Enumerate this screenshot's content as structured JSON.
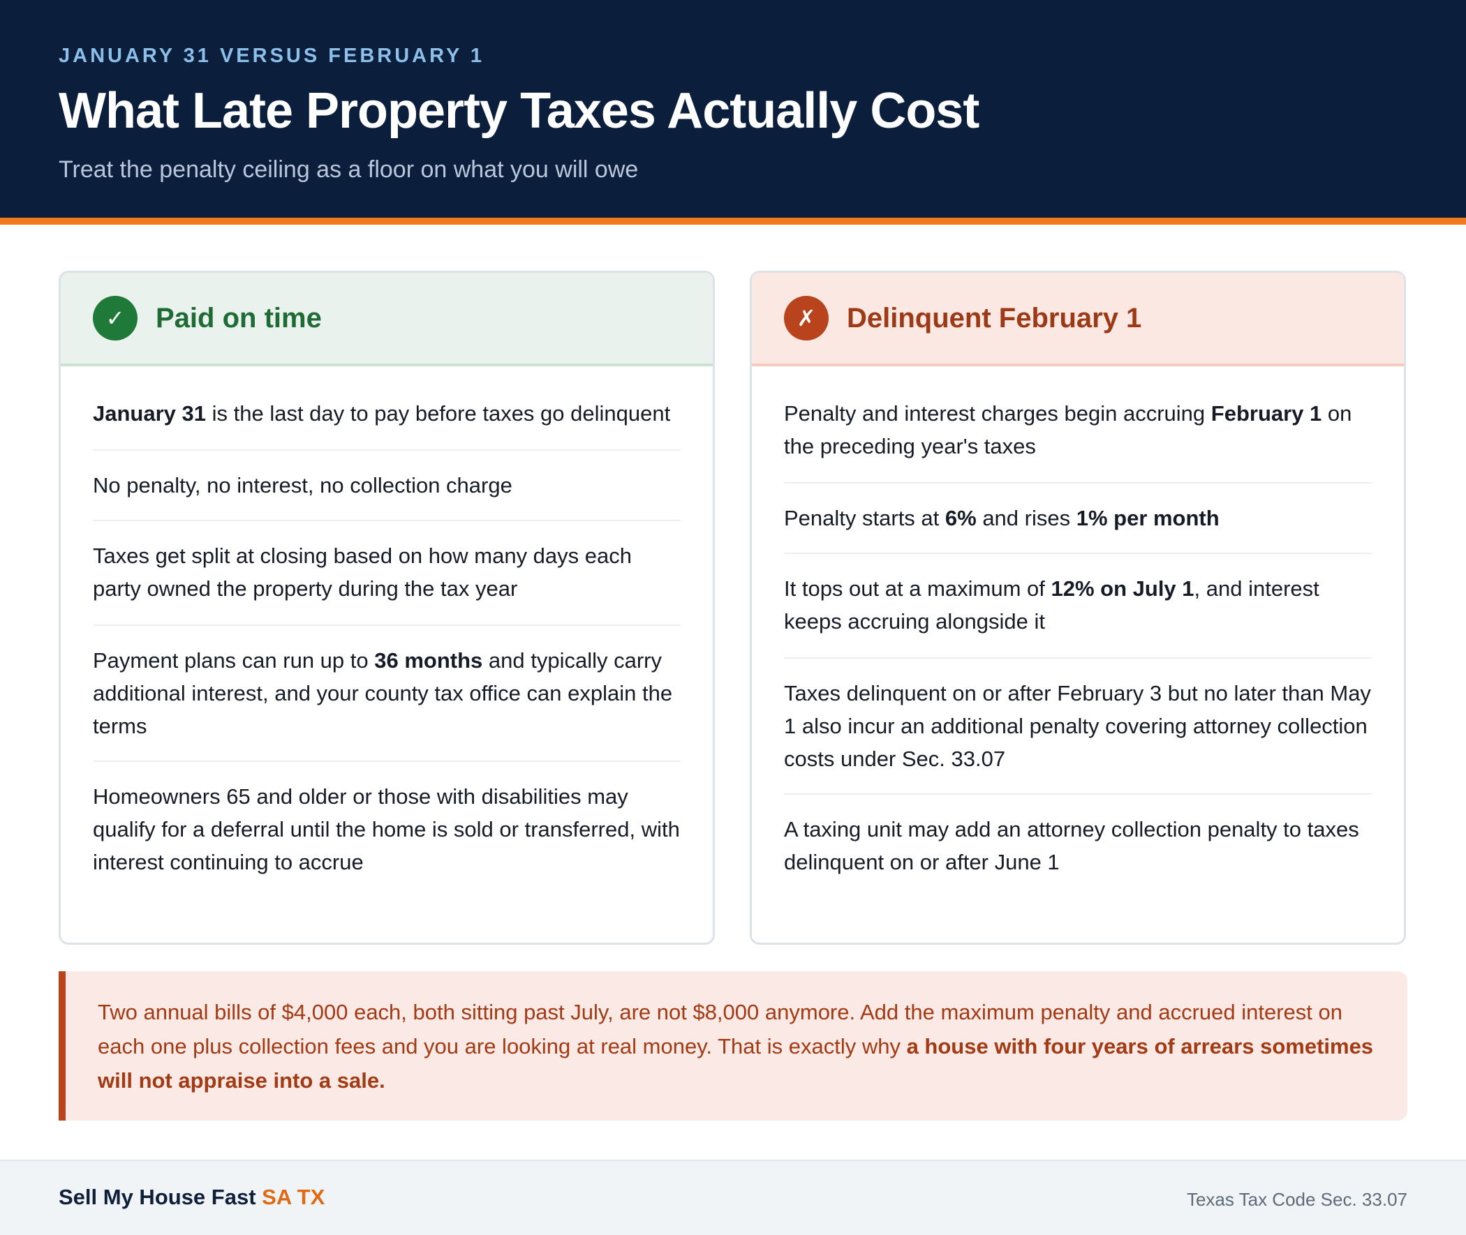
{
  "header": {
    "eyebrow": "JANUARY 31 VERSUS FEBRUARY 1",
    "title": "What Late Property Taxes Actually Cost",
    "subtitle": "Treat the penalty ceiling as a floor on what you will owe"
  },
  "cards": {
    "on_time": {
      "icon": "check-icon",
      "badge_glyph": "✓",
      "title": "Paid on time",
      "items": [
        {
          "strong": "January 31",
          "rest": " is the last day to pay before taxes go delinquent"
        },
        {
          "text": "No penalty, no interest, no collection charge"
        },
        {
          "text": "Taxes get split at closing based on how many days each party owned the property during the tax year"
        },
        {
          "pre": "Payment plans can run up to ",
          "strong": "36 months",
          "post": " and typically carry additional interest, and your county tax office can explain the terms"
        },
        {
          "text": "Homeowners 65 and older or those with disabilities may qualify for a deferral until the home is sold or transferred, with interest continuing to accrue"
        }
      ]
    },
    "delinquent": {
      "icon": "x-icon",
      "badge_glyph": "✗",
      "title": "Delinquent February 1",
      "items": [
        {
          "pre": "Penalty and interest charges begin accruing ",
          "strong": "February 1",
          "post": " on the preceding year's taxes"
        },
        {
          "pre": "Penalty starts at ",
          "strong": "6%",
          "mid": " and rises ",
          "strong2": "1% per month"
        },
        {
          "pre": "It tops out at a maximum of ",
          "strong": "12% on July 1",
          "post": ", and interest keeps accruing alongside it"
        },
        {
          "text": "Taxes delinquent on or after February 3 but no later than May 1 also incur an additional penalty covering attorney collection costs under Sec. 33.07"
        },
        {
          "text": "A taxing unit may add an attorney collection penalty to taxes delinquent on or after June 1"
        }
      ]
    }
  },
  "callout": {
    "text": "Two annual bills of $4,000 each, both sitting past July, are not $8,000 anymore. Add the maximum penalty and accrued interest on each one plus collection fees and you are looking at real money. That is exactly why ",
    "strong": "a house with four years of arrears sometimes will not appraise into a sale."
  },
  "footer": {
    "brand_main": "Sell My House Fast ",
    "brand_accent": "SA TX",
    "source": "Texas Tax Code Sec. 33.07"
  },
  "colors": {
    "navy": "#0b1f3d",
    "orange": "#f07a1c",
    "green": "#1f7a3a",
    "rust": "#b8431c"
  }
}
